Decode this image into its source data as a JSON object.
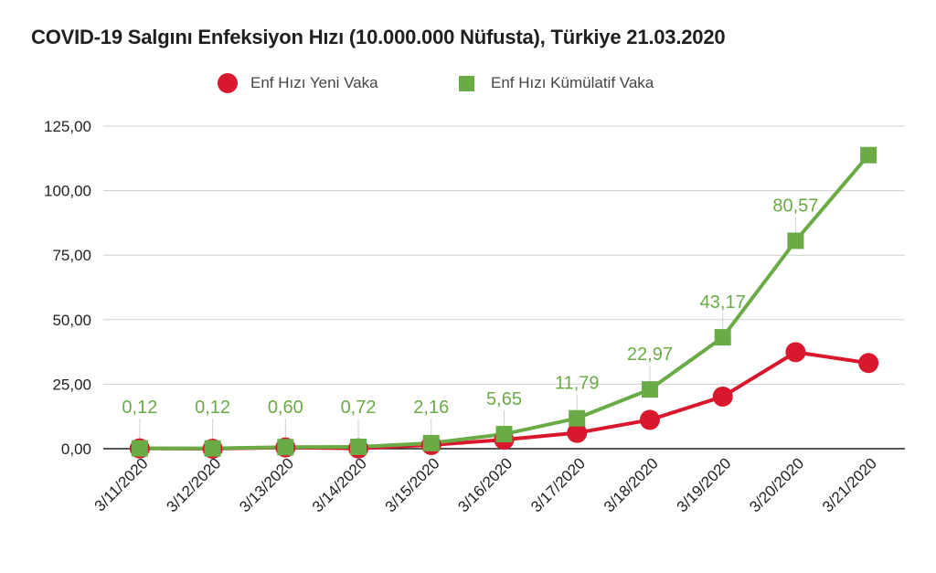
{
  "chart_data": {
    "type": "line",
    "title": "COVID-19 Salgını Enfeksiyon Hızı (10.000.000 Nüfusta), Türkiye 21.03.2020",
    "xlabel": "",
    "ylabel": "",
    "categories": [
      "3/11/2020",
      "3/12/2020",
      "3/13/2020",
      "3/14/2020",
      "3/15/2020",
      "3/16/2020",
      "3/17/2020",
      "3/18/2020",
      "3/19/2020",
      "3/20/2020",
      "3/21/2020"
    ],
    "ylim": [
      0,
      125
    ],
    "yticks": [
      "0,00",
      "25,00",
      "50,00",
      "75,00",
      "100,00",
      "125,00"
    ],
    "grid": true,
    "legend_position": "top",
    "series": [
      {
        "name": "Enf Hızı Yeni Vaka",
        "color": "#d9182d",
        "marker": "circle",
        "values": [
          0.12,
          0.0,
          0.48,
          0.12,
          1.44,
          3.49,
          6.14,
          11.18,
          20.2,
          37.4,
          33.2
        ]
      },
      {
        "name": "Enf Hızı Kümülatif Vaka",
        "color": "#6aab46",
        "marker": "square",
        "values": [
          0.12,
          0.12,
          0.6,
          0.72,
          2.16,
          5.65,
          11.79,
          22.97,
          43.17,
          80.57,
          113.77
        ],
        "data_labels": [
          "0,12",
          "0,12",
          "0,60",
          "0,72",
          "2,16",
          "5,65",
          "11,79",
          "22,97",
          "43,17",
          "80,57",
          ""
        ]
      }
    ]
  }
}
